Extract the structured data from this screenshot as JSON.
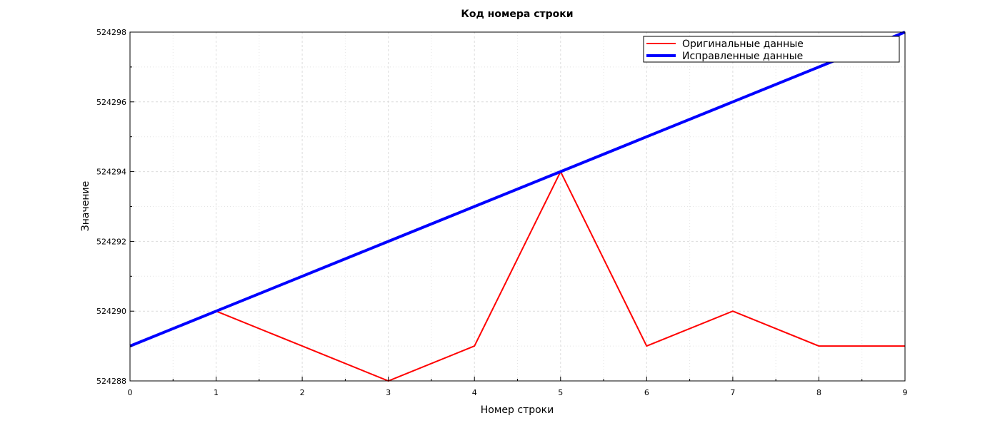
{
  "chart_data": {
    "type": "line",
    "title": "Код номера строки",
    "xlabel": "Номер строки",
    "ylabel": "Значение",
    "xlim": [
      0,
      9
    ],
    "ylim": [
      524288,
      524298
    ],
    "x_ticks": [
      0,
      1,
      2,
      3,
      4,
      5,
      6,
      7,
      8,
      9
    ],
    "y_ticks": [
      524288,
      524290,
      524292,
      524294,
      524296,
      524298
    ],
    "grid": true,
    "legend_position": "top-right",
    "series": [
      {
        "name": "Оригинальные данные",
        "color": "#ff0000",
        "x": [
          1,
          2,
          3,
          4,
          5,
          6,
          7,
          8,
          9
        ],
        "y": [
          524290,
          524289,
          524288,
          524289,
          524294,
          524289,
          524290,
          524289,
          524289
        ]
      },
      {
        "name": "Исправленные данные",
        "color": "#0000ff",
        "x": [
          0,
          1,
          2,
          3,
          4,
          5,
          6,
          7,
          8,
          9
        ],
        "y": [
          524289,
          524290,
          524291,
          524292,
          524293,
          524294,
          524295,
          524296,
          524297,
          524298
        ]
      }
    ]
  }
}
